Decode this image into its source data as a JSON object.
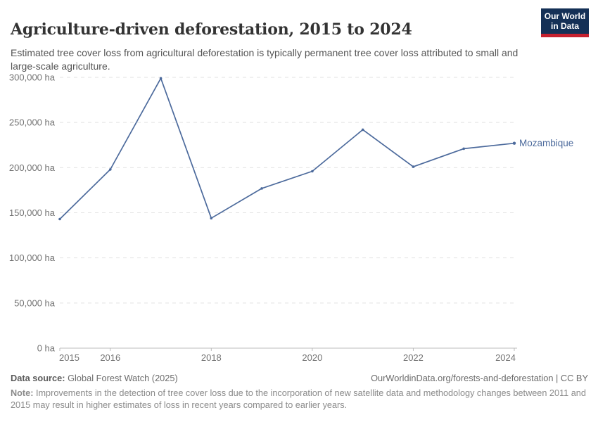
{
  "header": {
    "title": "Agriculture-driven deforestation, 2015 to 2024",
    "subtitle": "Estimated tree cover loss from agricultural deforestation is typically permanent tree cover loss attributed to small and large-scale agriculture.",
    "logo": {
      "line1": "Our World",
      "line2": "in Data",
      "background_color": "#143056",
      "accent_color": "#c5202e"
    }
  },
  "chart_data": {
    "type": "line",
    "title": "Agriculture-driven deforestation, 2015 to 2024",
    "x": [
      2015,
      2016,
      2017,
      2018,
      2019,
      2020,
      2021,
      2022,
      2023,
      2024
    ],
    "series": [
      {
        "name": "Mozambique",
        "values": [
          143000,
          198000,
          299000,
          144000,
          177000,
          196000,
          242000,
          201000,
          221000,
          227000
        ],
        "color": "#4C6A9C"
      }
    ],
    "unit": "ha",
    "ylim": [
      0,
      300000
    ],
    "y_ticks": [
      {
        "value": 0,
        "label": "0 ha"
      },
      {
        "value": 50000,
        "label": "50,000 ha"
      },
      {
        "value": 100000,
        "label": "100,000 ha"
      },
      {
        "value": 150000,
        "label": "150,000 ha"
      },
      {
        "value": 200000,
        "label": "200,000 ha"
      },
      {
        "value": 250000,
        "label": "250,000 ha"
      },
      {
        "value": 300000,
        "label": "300,000 ha"
      }
    ],
    "x_ticks": [
      2015,
      2016,
      2018,
      2020,
      2022,
      2024
    ],
    "grid": "horizontal-dashed",
    "legend_position": "end-of-line",
    "end_label": "Mozambique"
  },
  "footer": {
    "source_label": "Data source:",
    "source_value": " Global Forest Watch (2025)",
    "attribution": "OurWorldinData.org/forests-and-deforestation | CC BY",
    "note_label": "Note:",
    "note_value": " Improvements in the detection of tree cover loss due to the incorporation of new satellite data and methodology changes between 2011 and 2015 may result in higher estimates of loss in recent years compared to earlier years."
  }
}
